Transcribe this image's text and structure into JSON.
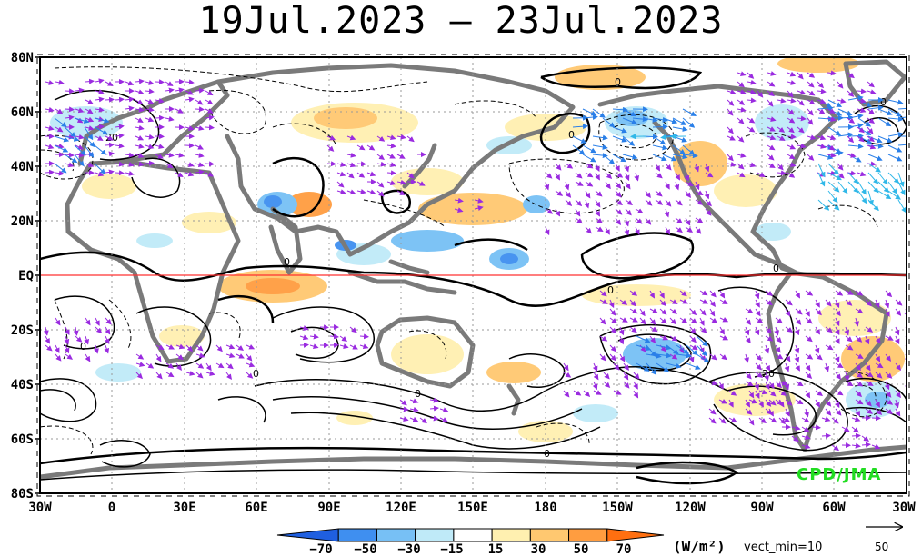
{
  "title": "19Jul.2023 – 23Jul.2023",
  "lat_labels": [
    "80N",
    "60N",
    "40N",
    "20N",
    "EQ",
    "20S",
    "40S",
    "60S",
    "80S"
  ],
  "lon_labels": [
    "30W",
    "0",
    "30E",
    "60E",
    "90E",
    "120E",
    "150E",
    "180",
    "150W",
    "120W",
    "90W",
    "60W",
    "30W"
  ],
  "colorbar": {
    "labels": [
      "−70",
      "−50",
      "−30",
      "−15",
      "15",
      "30",
      "50",
      "70"
    ],
    "colors": [
      "#1f5fe0",
      "#3f8ff0",
      "#77c0f5",
      "#bfeaf8",
      "#ffffff",
      "#fff0b0",
      "#ffc870",
      "#ff9d40",
      "#ff6f10"
    ]
  },
  "units": "(W/m²)",
  "vector_min_label": "vect_min=10",
  "reference_vector_value": "50",
  "credit": "CPD/JMA",
  "contour_labels": [
    "0",
    "0",
    "0",
    "0",
    "0",
    "0",
    "0",
    "0",
    "0",
    "20",
    "20"
  ],
  "colors": {
    "coastline": "#7a7a7a",
    "equator": "#ff3030",
    "vector_purple": "#9a2be0",
    "vector_blue": "#2a7fe8",
    "vector_cyan": "#30b8e8"
  }
}
